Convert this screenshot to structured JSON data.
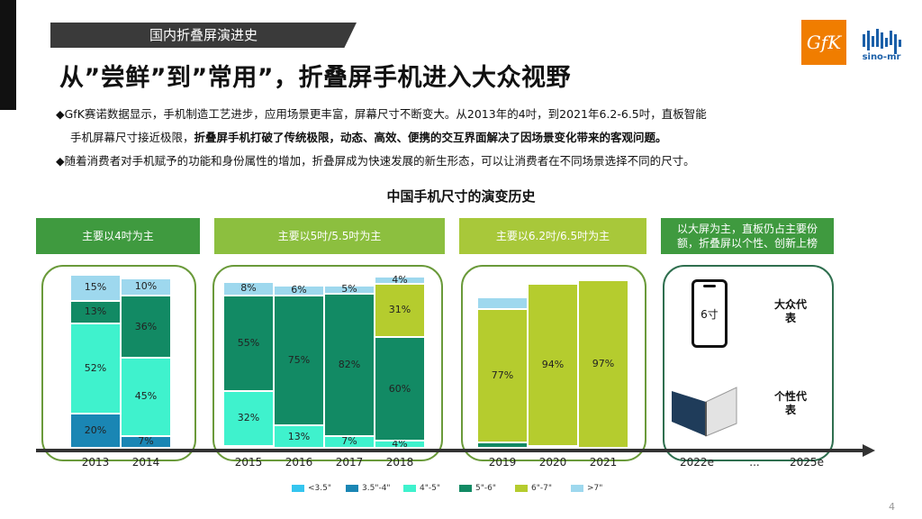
{
  "section_tab": "国内折叠屏演进史",
  "headline": "从”尝鲜”到”常用”，折叠屏手机进入大众视野",
  "logos": {
    "gfk": "GfK",
    "sino": "sino-mr"
  },
  "bullets": {
    "b1_line1": "◆GfK赛诺数据显示，手机制造工艺进步，应用场景更丰富，屏幕尺寸不断变大。从2013年的4吋，到2021年6.2-6.5吋，直板智能",
    "b1_line2_normal": "手机屏幕尺寸接近极限，",
    "b1_line2_bold": "折叠屏手机打破了传统极限，动态、高效、便携的交互界面解决了因场景变化带来的客观问题。",
    "b2": "◆随着消费者对手机赋予的功能和身份属性的增加，折叠屏成为快速发展的新生形态，可以让消费者在不同场景选择不同的尺寸。"
  },
  "chart_title": "中国手机尺寸的演变历史",
  "era_bands": [
    {
      "text": "主要以4吋为主",
      "color": "#3f9a3f"
    },
    {
      "text": "主要以5吋/5.5吋为主",
      "color": "#8cbf3f"
    },
    {
      "text": "主要以6.2吋/6.5吋为主",
      "color": "#a8c83a"
    },
    {
      "text": "以大屏为主，直板仍占主要份额，折叠屏以个性、创新上榜",
      "color": "#3f9a3f"
    }
  ],
  "future": {
    "phone_size": "6寸",
    "mass_label": "大众代表",
    "niche_label": "个性代表",
    "years": [
      "2022e",
      "...",
      "2025e"
    ]
  },
  "legend": [
    {
      "name": "<3.5\"",
      "color": "#35c5ef"
    },
    {
      "name": "3.5\"-4\"",
      "color": "#1a86b4"
    },
    {
      "name": "4\"-5\"",
      "color": "#3ff2cd"
    },
    {
      "name": "5\"-6\"",
      "color": "#128a64"
    },
    {
      "name": "6\"-7\"",
      "color": "#b5cc2e"
    },
    {
      "name": ">7\"",
      "color": "#9ed8ee"
    }
  ],
  "page_number": "4",
  "chart_data": {
    "type": "bar",
    "stacked": true,
    "title": "中国手机尺寸的演变历史",
    "categories": [
      "2013",
      "2014",
      "2015",
      "2016",
      "2017",
      "2018",
      "2019",
      "2020",
      "2021"
    ],
    "series": [
      {
        "name": "<3.5\"",
        "values": [
          0,
          0,
          0,
          0,
          0,
          0,
          0,
          0,
          0
        ],
        "labels": [
          "",
          "",
          "",
          "",
          "",
          "",
          "",
          "",
          ""
        ]
      },
      {
        "name": "3.5\"-4\"",
        "values": [
          20,
          7,
          1,
          0,
          0,
          0,
          0,
          0,
          0
        ],
        "labels": [
          "20%",
          "7%",
          "",
          "",
          "",
          "",
          "",
          "",
          ""
        ]
      },
      {
        "name": "4\"-5\"",
        "values": [
          52,
          45,
          32,
          13,
          7,
          4,
          0,
          0,
          0
        ],
        "labels": [
          "52%",
          "45%",
          "32%",
          "13%",
          "7%",
          "4%",
          "",
          "",
          ""
        ]
      },
      {
        "name": "5\"-6\"",
        "values": [
          13,
          36,
          55,
          75,
          82,
          60,
          3,
          1,
          0
        ],
        "labels": [
          "13%",
          "36%",
          "55%",
          "75%",
          "82%",
          "60%",
          "",
          "",
          ""
        ]
      },
      {
        "name": "6\"-7\"",
        "values": [
          0,
          0,
          0,
          0,
          0,
          31,
          77,
          94,
          97
        ],
        "labels": [
          "",
          "",
          "",
          "",
          "",
          "31%",
          "77%",
          "94%",
          "97%"
        ]
      },
      {
        "name": ">7\"",
        "values": [
          15,
          10,
          8,
          6,
          5,
          4,
          7,
          1,
          1
        ],
        "labels": [
          "15%",
          "10%",
          "8%",
          "6%",
          "5%",
          "4%",
          "",
          "",
          ""
        ]
      }
    ],
    "ylim": [
      0,
      100
    ]
  }
}
